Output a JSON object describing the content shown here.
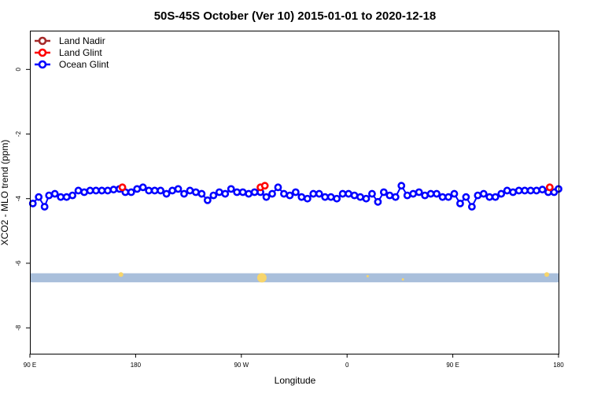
{
  "colors": {
    "land_nadir": "#a52a2a",
    "land_glint": "#ff0000",
    "ocean_glint": "#0000ff",
    "band": "#a9bfdb",
    "marker": "#f7d56b"
  },
  "chart_data": {
    "type": "line",
    "title": "50S-45S October (Ver 10)   2015-01-01 to 2020-12-18",
    "xlabel": "Longitude",
    "ylabel": "XCO2 - MLO trend (ppm)",
    "xlim": [
      90,
      450
    ],
    "ylim": [
      -8.8,
      1.2
    ],
    "x_ticks": [
      {
        "value": 90,
        "label": "90 E"
      },
      {
        "value": 162,
        "label": "180"
      },
      {
        "value": 234,
        "label": "90 W"
      },
      {
        "value": 306,
        "label": "0"
      },
      {
        "value": 378,
        "label": "90 E"
      },
      {
        "value": 450,
        "label": "180"
      }
    ],
    "y_ticks": [
      0,
      -2,
      -4,
      -6,
      -8
    ],
    "legend_position": "top-left",
    "grid": false,
    "series": [
      {
        "name": "Land Nadir",
        "color": "#a52a2a",
        "x": [],
        "y": []
      },
      {
        "name": "Land Glint",
        "color": "#ff0000",
        "x": [
          153,
          247,
          250,
          444
        ],
        "y": [
          -3.65,
          -3.65,
          -3.6,
          -3.65
        ]
      },
      {
        "name": "Ocean Glint",
        "color": "#0000ff",
        "x": [
          92,
          96,
          100,
          103,
          107,
          111,
          115,
          119,
          123,
          127,
          131,
          135,
          139,
          143,
          147,
          151,
          155,
          159,
          163,
          167,
          171,
          175,
          179,
          183,
          187,
          191,
          195,
          199,
          203,
          207,
          211,
          215,
          219,
          223,
          227,
          231,
          235,
          239,
          243,
          247,
          251,
          255,
          259,
          263,
          267,
          271,
          275,
          279,
          283,
          287,
          291,
          295,
          299,
          303,
          307,
          311,
          315,
          319,
          323,
          327,
          331,
          335,
          339,
          343,
          347,
          351,
          355,
          359,
          363,
          367,
          371,
          375,
          379,
          383,
          387,
          391,
          395,
          399,
          403,
          407,
          411,
          415,
          419,
          423,
          427,
          431,
          435,
          439,
          443,
          447,
          450
        ],
        "y": [
          -4.15,
          -3.95,
          -4.25,
          -3.9,
          -3.85,
          -3.95,
          -3.95,
          -3.9,
          -3.75,
          -3.8,
          -3.75,
          -3.75,
          -3.75,
          -3.75,
          -3.72,
          -3.7,
          -3.8,
          -3.8,
          -3.7,
          -3.65,
          -3.75,
          -3.75,
          -3.75,
          -3.85,
          -3.75,
          -3.7,
          -3.85,
          -3.75,
          -3.8,
          -3.85,
          -4.05,
          -3.9,
          -3.8,
          -3.85,
          -3.7,
          -3.8,
          -3.8,
          -3.85,
          -3.8,
          -3.8,
          -3.95,
          -3.85,
          -3.65,
          -3.85,
          -3.9,
          -3.8,
          -3.95,
          -4.0,
          -3.85,
          -3.85,
          -3.95,
          -3.95,
          -4.0,
          -3.85,
          -3.85,
          -3.9,
          -3.95,
          -4.0,
          -3.85,
          -4.1,
          -3.8,
          -3.9,
          -3.95,
          -3.6,
          -3.9,
          -3.85,
          -3.8,
          -3.9,
          -3.85,
          -3.85,
          -3.95,
          -3.95,
          -3.85,
          -4.15,
          -3.95,
          -4.25,
          -3.9,
          -3.85,
          -3.95,
          -3.95,
          -3.85,
          -3.75,
          -3.8,
          -3.75,
          -3.75,
          -3.75,
          -3.75,
          -3.72,
          -3.8,
          -3.8,
          -3.7
        ]
      }
    ],
    "band": {
      "y_center": -6.45,
      "y_half_height": 0.14
    },
    "band_markers": [
      {
        "x": 152,
        "y": -6.35,
        "size": "small"
      },
      {
        "x": 248,
        "y": -6.45,
        "size": "large"
      },
      {
        "x": 320,
        "y": -6.4,
        "size": "tiny"
      },
      {
        "x": 344,
        "y": -6.5,
        "size": "tiny"
      },
      {
        "x": 442,
        "y": -6.35,
        "size": "small"
      }
    ]
  }
}
